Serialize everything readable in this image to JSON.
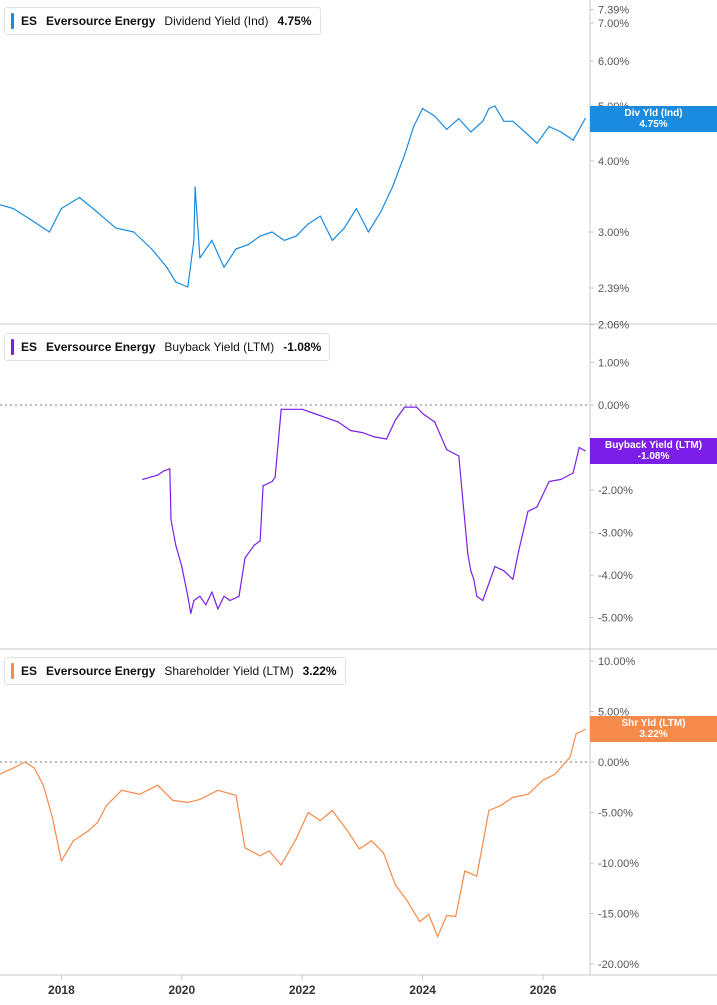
{
  "colors": {
    "dividend": "#1b8be0",
    "buyback": "#7b1fe8",
    "shareholder": "#f58a4a",
    "axis_text": "#555555",
    "grid": "#c8c8c8"
  },
  "x_axis": {
    "ticks": [
      "2018",
      "2020",
      "2022",
      "2024",
      "2026"
    ]
  },
  "panels": [
    {
      "id": "dividend",
      "legend": {
        "ticker": "ES",
        "company": "Eversource Energy",
        "metric": "Dividend Yield (Ind)",
        "value": "4.75%"
      },
      "tag": {
        "line1": "Div Yld (Ind)",
        "line2": "4.75%"
      },
      "y_ticks": [
        {
          "v": 7.39,
          "label": "7.39%"
        },
        {
          "v": 7.0,
          "label": "7.00%"
        },
        {
          "v": 6.0,
          "label": "6.00%"
        },
        {
          "v": 5.0,
          "label": "5.00%"
        },
        {
          "v": 4.0,
          "label": "4.00%"
        },
        {
          "v": 3.0,
          "label": "3.00%"
        },
        {
          "v": 2.39,
          "label": "2.39%"
        },
        {
          "v": 2.06,
          "label": "2.06%"
        }
      ]
    },
    {
      "id": "buyback",
      "legend": {
        "ticker": "ES",
        "company": "Eversource Energy",
        "metric": "Buyback Yield (LTM)",
        "value": "-1.08%"
      },
      "tag": {
        "line1": "Buyback Yield (LTM)",
        "line2": "-1.08%"
      },
      "y_ticks": [
        {
          "v": 1.0,
          "label": "1.00%"
        },
        {
          "v": 0.0,
          "label": "0.00%"
        },
        {
          "v": -2.0,
          "label": "-2.00%"
        },
        {
          "v": -3.0,
          "label": "-3.00%"
        },
        {
          "v": -4.0,
          "label": "-4.00%"
        },
        {
          "v": -5.0,
          "label": "-5.00%"
        }
      ]
    },
    {
      "id": "shareholder",
      "legend": {
        "ticker": "ES",
        "company": "Eversource Energy",
        "metric": "Shareholder Yield (LTM)",
        "value": "3.22%"
      },
      "tag": {
        "line1": "Shr Yld (LTM)",
        "line2": "3.22%"
      },
      "y_ticks": [
        {
          "v": 10.0,
          "label": "10.00%"
        },
        {
          "v": 5.0,
          "label": "5.00%"
        },
        {
          "v": 0.0,
          "label": "0.00%"
        },
        {
          "v": -5.0,
          "label": "-5.00%"
        },
        {
          "v": -10.0,
          "label": "-10.00%"
        },
        {
          "v": -15.0,
          "label": "-15.00%"
        },
        {
          "v": -20.0,
          "label": "-20.00%"
        }
      ]
    }
  ],
  "chart_data": [
    {
      "type": "line",
      "ylabel": "",
      "ylim": [
        2.06,
        7.39
      ],
      "y_scale": "log",
      "series": [
        {
          "name": "Dividend Yield (Ind)",
          "x": [
            2016.98,
            2017.2,
            2017.5,
            2017.8,
            2018.0,
            2018.3,
            2018.6,
            2018.9,
            2019.2,
            2019.5,
            2019.75,
            2019.9,
            2020.1,
            2020.2,
            2020.22,
            2020.3,
            2020.5,
            2020.7,
            2020.9,
            2021.1,
            2021.3,
            2021.5,
            2021.7,
            2021.9,
            2022.1,
            2022.3,
            2022.5,
            2022.7,
            2022.9,
            2023.1,
            2023.3,
            2023.5,
            2023.7,
            2023.85,
            2024.0,
            2024.2,
            2024.4,
            2024.6,
            2024.8,
            2025.0,
            2025.1,
            2025.2,
            2025.35,
            2025.5,
            2025.7,
            2025.9,
            2026.1,
            2026.3,
            2026.5,
            2026.7
          ],
          "y": [
            3.35,
            3.3,
            3.15,
            3.0,
            3.3,
            3.45,
            3.25,
            3.05,
            3.0,
            2.8,
            2.6,
            2.45,
            2.4,
            2.9,
            3.6,
            2.7,
            2.9,
            2.6,
            2.8,
            2.85,
            2.95,
            3.0,
            2.9,
            2.95,
            3.1,
            3.2,
            2.9,
            3.05,
            3.3,
            3.0,
            3.25,
            3.6,
            4.1,
            4.6,
            4.95,
            4.8,
            4.55,
            4.75,
            4.5,
            4.7,
            4.95,
            5.0,
            4.7,
            4.7,
            4.5,
            4.3,
            4.6,
            4.5,
            4.35,
            4.75
          ]
        }
      ]
    },
    {
      "type": "line",
      "ylabel": "",
      "ylim": [
        -5.2,
        1.2
      ],
      "series": [
        {
          "name": "Buyback Yield (LTM)",
          "x": [
            2019.35,
            2019.6,
            2019.7,
            2019.8,
            2019.82,
            2019.9,
            2020.0,
            2020.1,
            2020.15,
            2020.2,
            2020.3,
            2020.4,
            2020.5,
            2020.6,
            2020.7,
            2020.8,
            2020.95,
            2021.05,
            2021.2,
            2021.3,
            2021.35,
            2021.5,
            2021.55,
            2021.65,
            2022.0,
            2022.2,
            2022.4,
            2022.6,
            2022.8,
            2023.0,
            2023.2,
            2023.4,
            2023.55,
            2023.7,
            2023.9,
            2024.0,
            2024.2,
            2024.4,
            2024.6,
            2024.75,
            2024.8,
            2024.85,
            2024.9,
            2025.0,
            2025.2,
            2025.35,
            2025.5,
            2025.6,
            2025.75,
            2025.9,
            2026.1,
            2026.3,
            2026.5,
            2026.6,
            2026.7
          ],
          "y": [
            -1.75,
            -1.65,
            -1.55,
            -1.5,
            -2.7,
            -3.3,
            -3.8,
            -4.5,
            -4.9,
            -4.6,
            -4.5,
            -4.7,
            -4.4,
            -4.8,
            -4.5,
            -4.6,
            -4.5,
            -3.6,
            -3.3,
            -3.2,
            -1.9,
            -1.8,
            -1.7,
            -0.1,
            -0.1,
            -0.2,
            -0.3,
            -0.4,
            -0.6,
            -0.65,
            -0.75,
            -0.8,
            -0.35,
            -0.05,
            -0.05,
            -0.2,
            -0.4,
            -1.05,
            -1.2,
            -3.5,
            -3.9,
            -4.1,
            -4.5,
            -4.6,
            -3.8,
            -3.9,
            -4.1,
            -3.4,
            -2.5,
            -2.4,
            -1.8,
            -1.75,
            -1.6,
            -1.0,
            -1.08
          ]
        }
      ]
    },
    {
      "type": "line",
      "ylabel": "",
      "ylim": [
        -20,
        10
      ],
      "series": [
        {
          "name": "Shareholder Yield (LTM)",
          "x": [
            2016.98,
            2017.2,
            2017.4,
            2017.55,
            2017.7,
            2017.85,
            2018.0,
            2018.2,
            2018.45,
            2018.6,
            2018.75,
            2019.0,
            2019.3,
            2019.6,
            2019.85,
            2020.1,
            2020.3,
            2020.6,
            2020.9,
            2021.05,
            2021.3,
            2021.45,
            2021.65,
            2021.9,
            2022.1,
            2022.3,
            2022.5,
            2022.75,
            2022.95,
            2023.15,
            2023.35,
            2023.55,
            2023.75,
            2023.95,
            2024.1,
            2024.25,
            2024.4,
            2024.55,
            2024.7,
            2024.9,
            2025.1,
            2025.3,
            2025.5,
            2025.75,
            2026.0,
            2026.2,
            2026.45,
            2026.55,
            2026.7
          ],
          "y": [
            -1.2,
            -0.6,
            0.0,
            -0.6,
            -2.3,
            -5.5,
            -9.8,
            -7.8,
            -6.8,
            -6.0,
            -4.3,
            -2.8,
            -3.2,
            -2.3,
            -3.8,
            -4.0,
            -3.7,
            -2.8,
            -3.3,
            -8.5,
            -9.3,
            -8.8,
            -10.2,
            -7.6,
            -5.0,
            -5.8,
            -4.8,
            -6.8,
            -8.6,
            -7.8,
            -9.0,
            -12.2,
            -13.8,
            -15.8,
            -15.1,
            -17.3,
            -15.2,
            -15.3,
            -10.8,
            -11.3,
            -4.8,
            -4.3,
            -3.5,
            -3.2,
            -1.8,
            -1.2,
            0.5,
            2.8,
            3.22
          ]
        }
      ]
    }
  ]
}
